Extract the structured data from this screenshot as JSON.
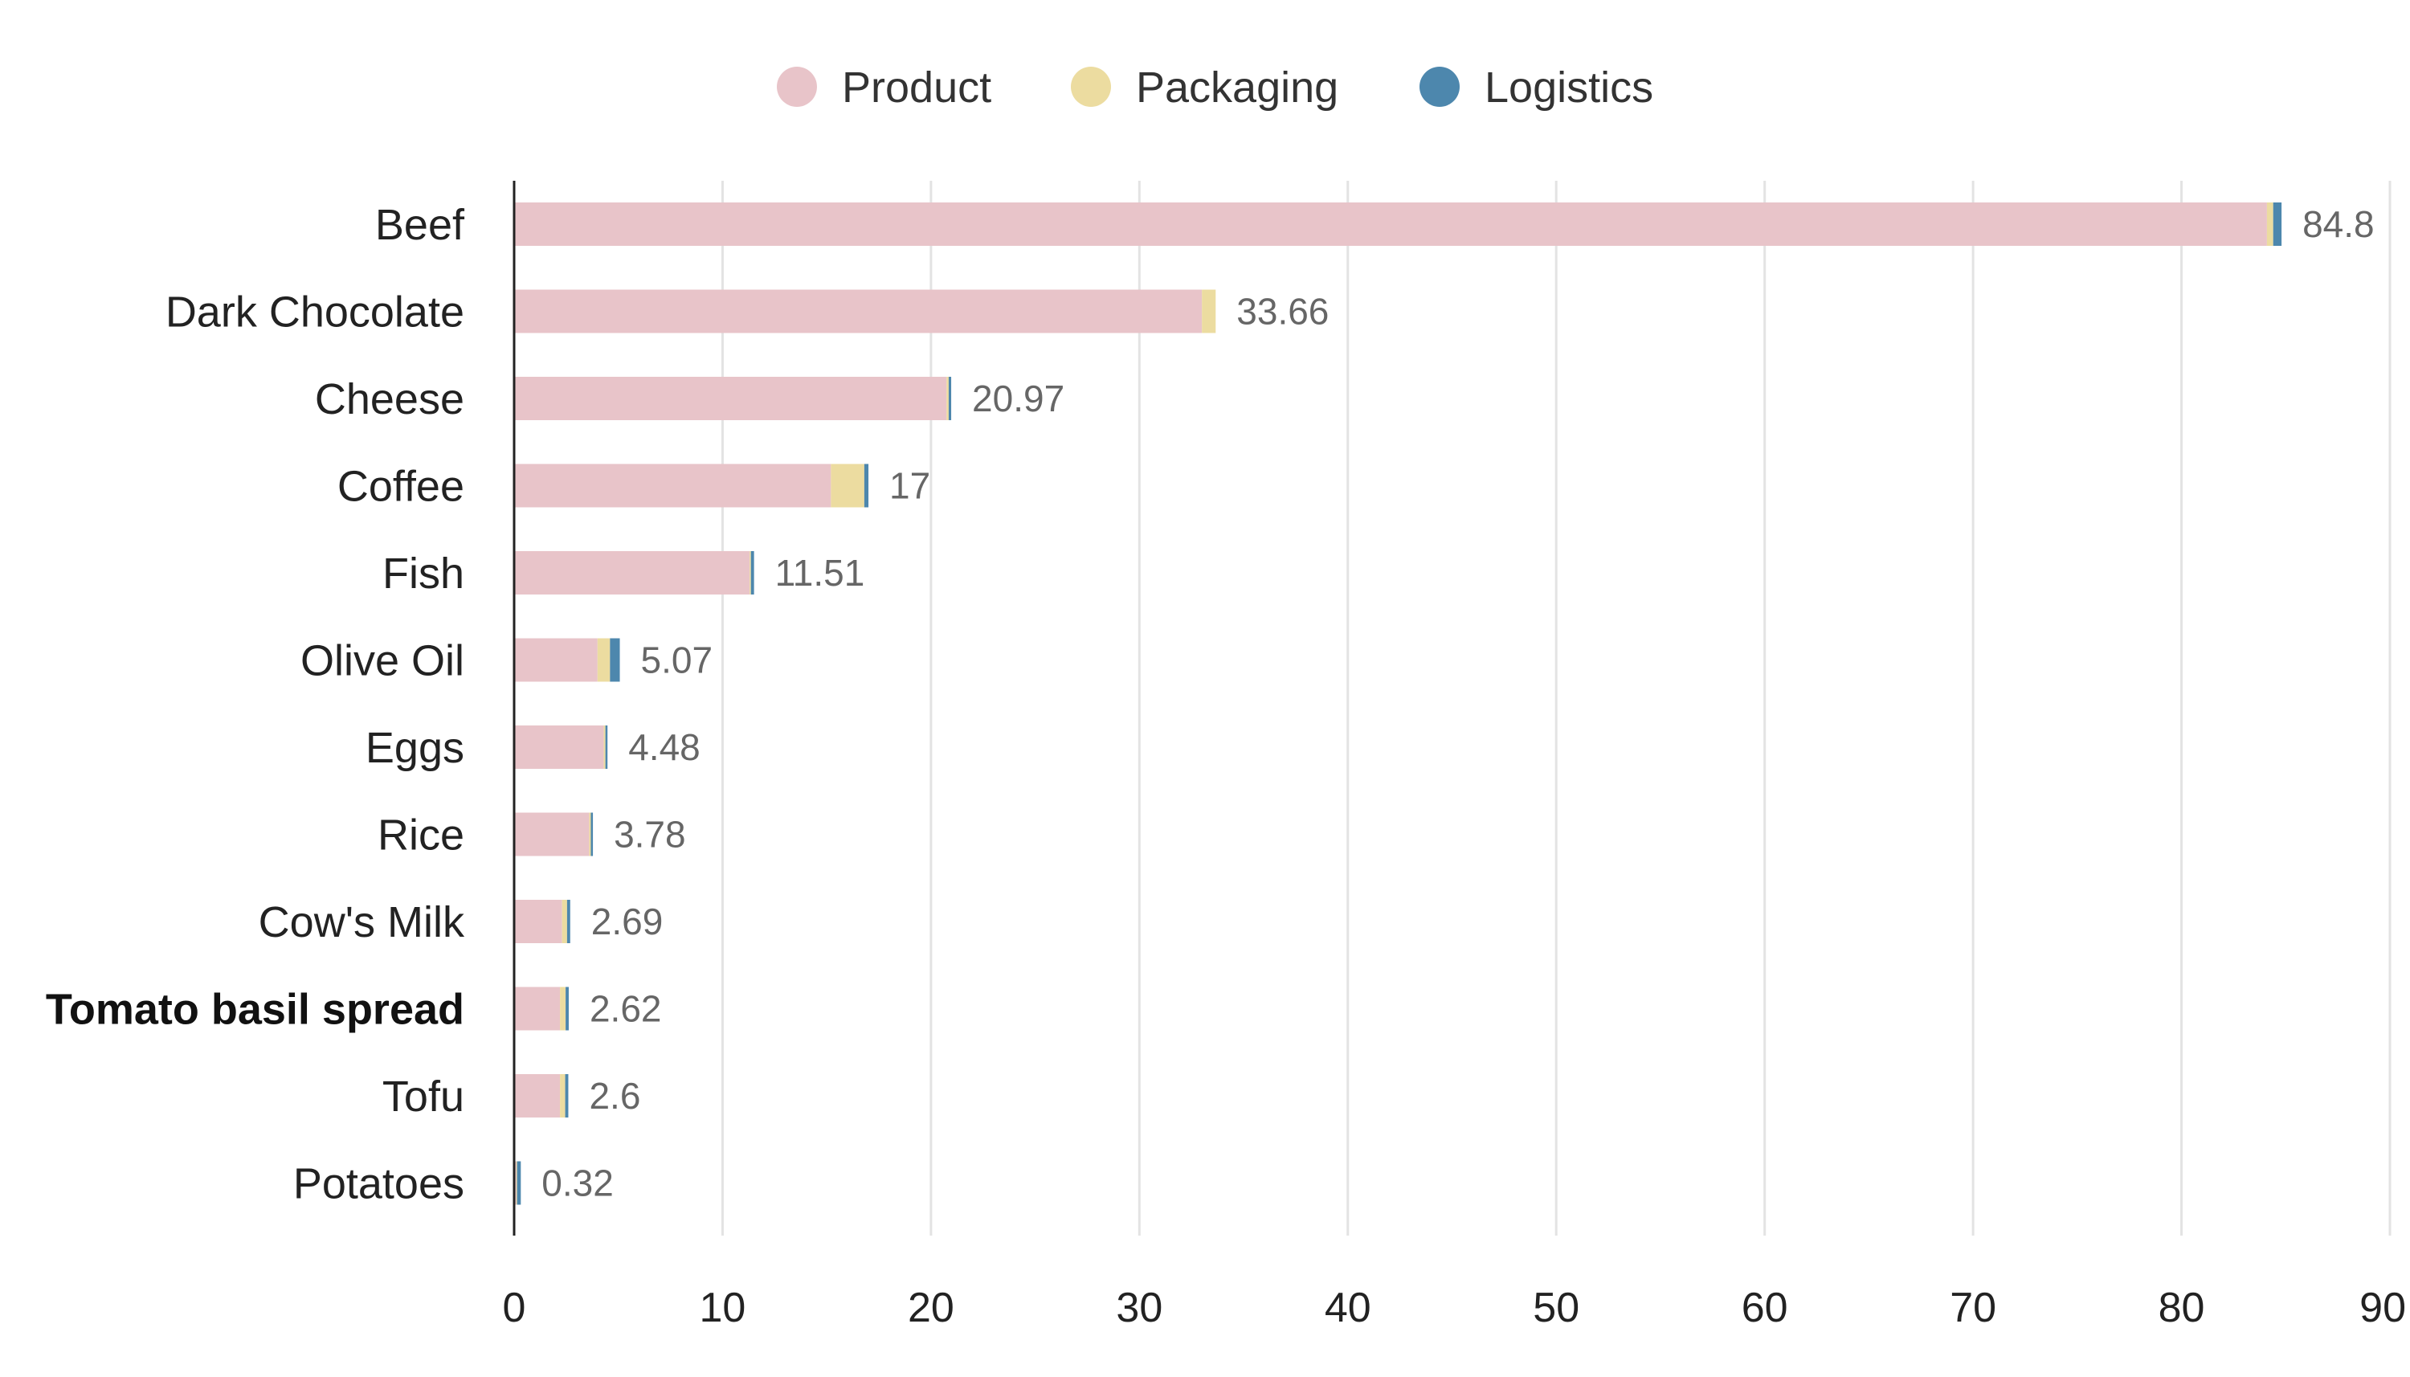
{
  "chart_data": {
    "type": "bar",
    "orientation": "horizontal",
    "stacked": true,
    "categories": [
      "Beef",
      "Dark Chocolate",
      "Cheese",
      "Coffee",
      "Fish",
      "Olive Oil",
      "Eggs",
      "Rice",
      "Cow's Milk",
      "Tomato basil spread",
      "Tofu",
      "Potatoes"
    ],
    "highlighted_category": "Tomato basil spread",
    "series": [
      {
        "name": "Product",
        "color": "#e8c4c9",
        "values": [
          84.1,
          33.0,
          20.75,
          15.2,
          11.3,
          4.0,
          4.3,
          3.6,
          2.3,
          2.2,
          2.2,
          0.1
        ]
      },
      {
        "name": "Packaging",
        "color": "#ecdca0",
        "values": [
          0.3,
          0.66,
          0.1,
          1.6,
          0.06,
          0.6,
          0.08,
          0.08,
          0.24,
          0.27,
          0.25,
          0.04
        ]
      },
      {
        "name": "Logistics",
        "color": "#4d87ad",
        "values": [
          0.4,
          0.0,
          0.12,
          0.2,
          0.15,
          0.47,
          0.1,
          0.1,
          0.15,
          0.15,
          0.15,
          0.18
        ]
      }
    ],
    "totals": [
      "84.8",
      "33.66",
      "20.97",
      "17",
      "11.51",
      "5.07",
      "4.48",
      "3.78",
      "2.69",
      "2.62",
      "2.6",
      "0.32"
    ],
    "x_ticks": [
      "0",
      "10",
      "20",
      "30",
      "40",
      "50",
      "60",
      "70",
      "80",
      "90"
    ],
    "xlim": [
      0,
      90
    ],
    "grid": "vertical",
    "legend_position": "top-center",
    "title": "",
    "xlabel": "",
    "ylabel": ""
  }
}
